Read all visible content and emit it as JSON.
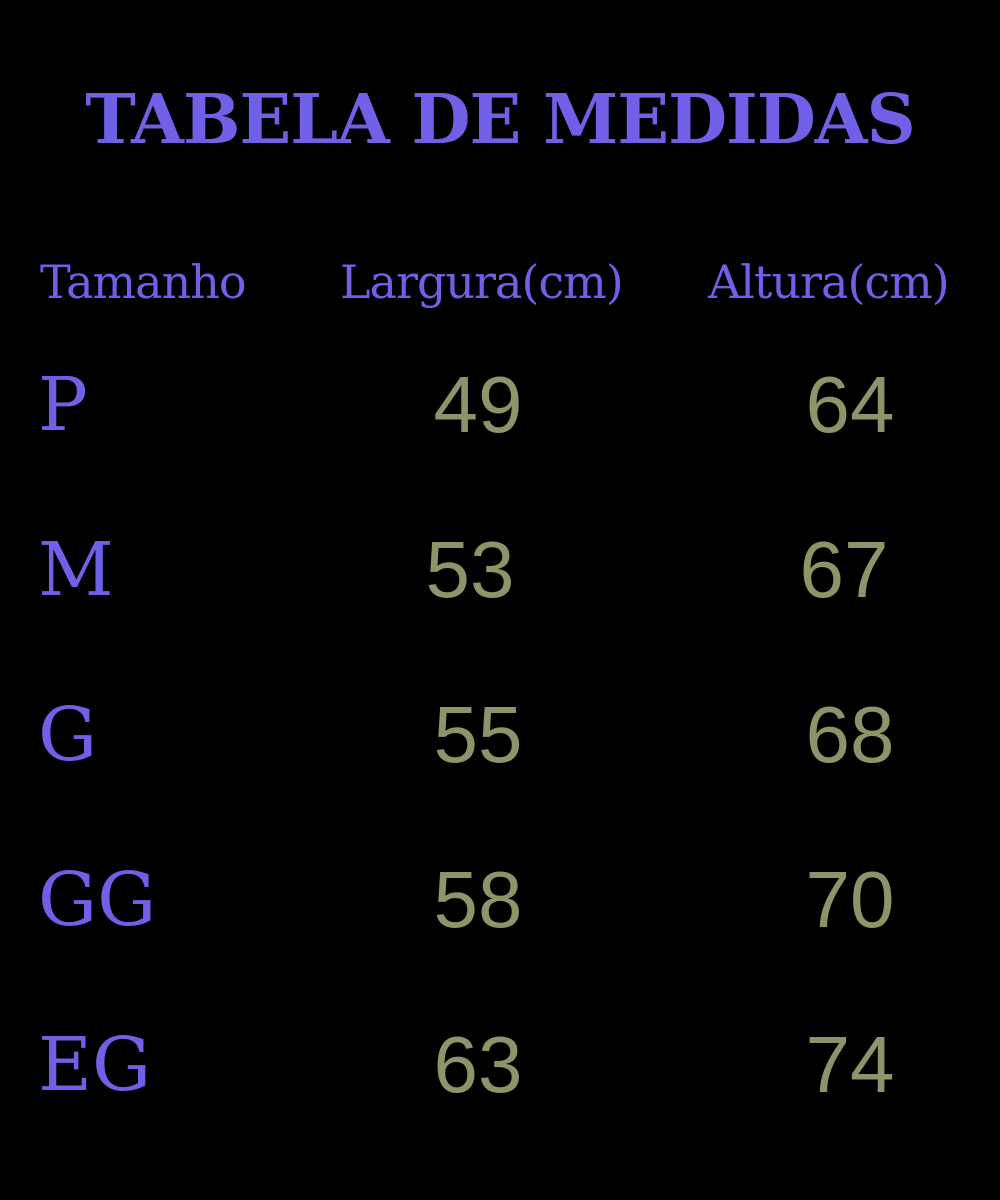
{
  "title": "TABELA DE MEDIDAS",
  "headers": [
    "Tamanho",
    "Largura(cm)",
    "Altura(cm)"
  ],
  "rows": [
    {
      "size": "P",
      "largura": "49",
      "altura": "64"
    },
    {
      "size": "M",
      "largura": "53",
      "altura": "67"
    },
    {
      "size": "G",
      "largura": "55",
      "altura": "68"
    },
    {
      "size": "GG",
      "largura": "58",
      "altura": "70"
    },
    {
      "size": "EG",
      "largura": "63",
      "altura": "74"
    }
  ],
  "colors": {
    "background": "#000000",
    "label": "#7060e8",
    "value": "#8e9467"
  }
}
